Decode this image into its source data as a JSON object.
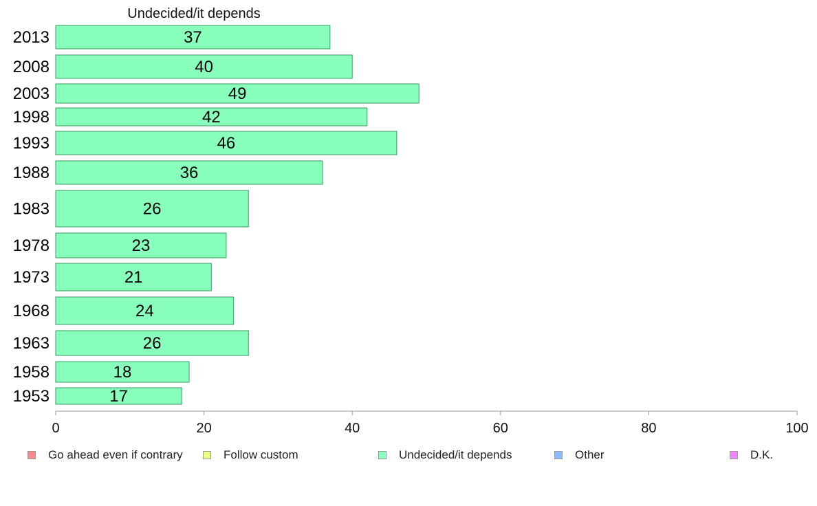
{
  "chart_data": {
    "type": "bar",
    "orientation": "horizontal",
    "title": "Undecided/it depends",
    "categories": [
      "2013",
      "2008",
      "2003",
      "1998",
      "1993",
      "1988",
      "1983",
      "1978",
      "1973",
      "1968",
      "1963",
      "1958",
      "1953"
    ],
    "values": [
      37,
      40,
      49,
      42,
      46,
      36,
      26,
      23,
      21,
      24,
      26,
      18,
      17
    ],
    "xlim": [
      0,
      100
    ],
    "xticks": [
      0,
      20,
      40,
      60,
      80,
      100
    ],
    "grid": false,
    "bar_color": "#88ffbb",
    "bar_edge_color": "#3a9a66",
    "legend_position": "bottom",
    "legend": [
      {
        "label": "Go ahead even if contrary",
        "color": "#ff8888"
      },
      {
        "label": "Follow custom",
        "color": "#eeff88"
      },
      {
        "label": "Undecided/it depends",
        "color": "#88ffbb"
      },
      {
        "label": "Other",
        "color": "#88bbff"
      },
      {
        "label": "D.K.",
        "color": "#ee88ff"
      }
    ]
  }
}
